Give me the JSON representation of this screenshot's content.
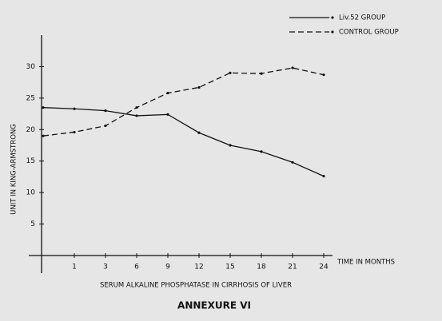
{
  "chart_data": {
    "type": "line",
    "title": "SERUM ALKALINE PHOSPHATASE IN CIRRHOSIS OF LIVER",
    "caption": "ANNEXURE VI",
    "x_label": "TIME IN MONTHS",
    "y_label": "UNIT IN KING-ARMSTRONG",
    "categories": [
      null,
      "1",
      "3",
      "6",
      "9",
      "12",
      "15",
      "18",
      "21",
      "24"
    ],
    "series": [
      {
        "name": "Liv.52 GROUP",
        "color": "#111111",
        "line_style": "solid",
        "values": [
          23.5,
          23.3,
          23.0,
          22.2,
          22.4,
          19.5,
          17.5,
          16.5,
          14.8,
          12.6
        ]
      },
      {
        "name": "CONTROL GROUP",
        "color": "#111111",
        "line_style": "dashed",
        "values": [
          19.0,
          19.6,
          20.6,
          23.5,
          25.8,
          26.7,
          29.0,
          28.9,
          29.8,
          28.7
        ]
      }
    ],
    "ylim": [
      0,
      35
    ],
    "yticks": [
      5,
      10,
      15,
      20,
      25,
      30
    ],
    "legend": "top-right"
  }
}
